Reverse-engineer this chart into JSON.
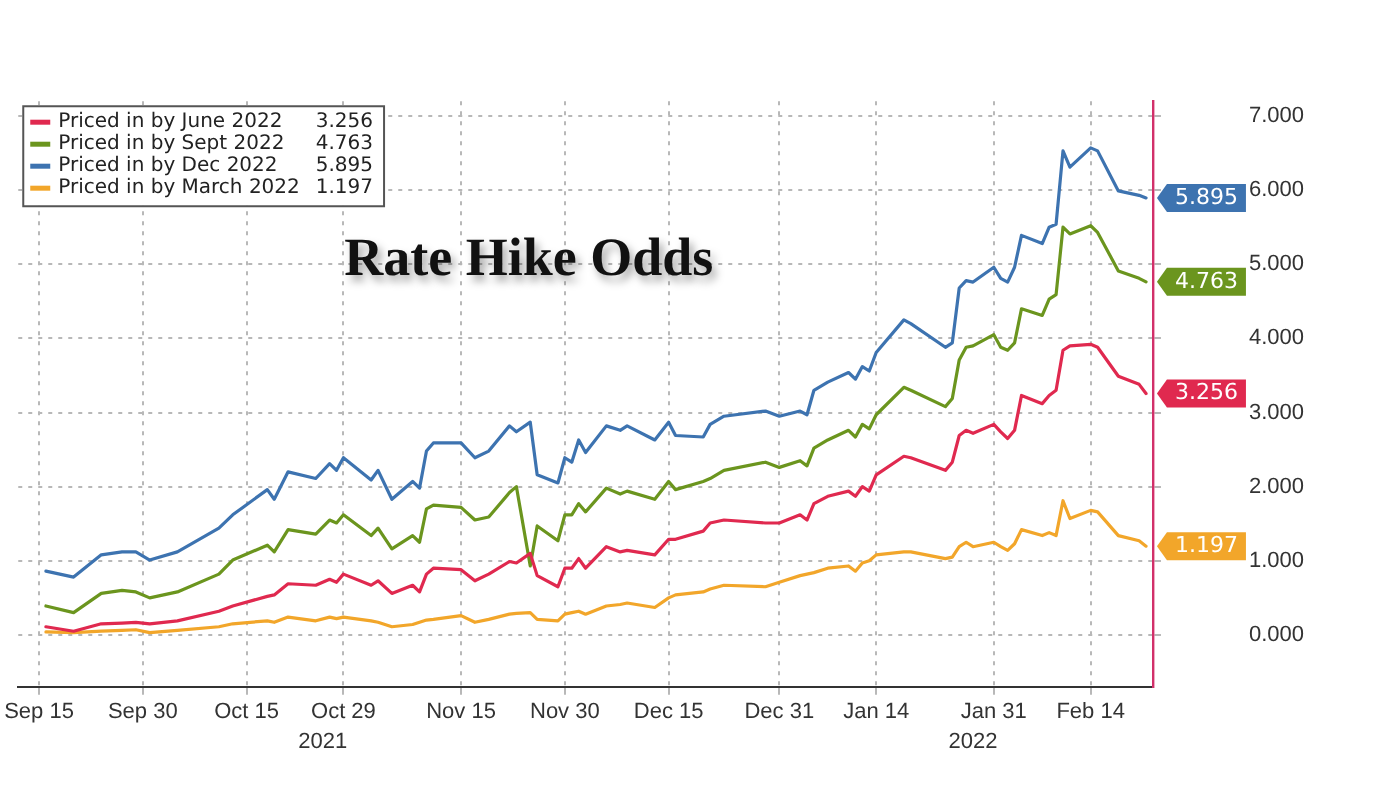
{
  "chart_data": {
    "type": "line",
    "title": "Rate Hike Odds",
    "x": [
      "2021-09-16",
      "2021-09-20",
      "2021-09-24",
      "2021-09-27",
      "2021-09-29",
      "2021-10-01",
      "2021-10-05",
      "2021-10-11",
      "2021-10-13",
      "2021-10-18",
      "2021-10-19",
      "2021-10-21",
      "2021-10-25",
      "2021-10-27",
      "2021-10-28",
      "2021-10-29",
      "2021-11-02",
      "2021-11-03",
      "2021-11-05",
      "2021-11-08",
      "2021-11-09",
      "2021-11-10",
      "2021-11-11",
      "2021-11-15",
      "2021-11-17",
      "2021-11-19",
      "2021-11-22",
      "2021-11-23",
      "2021-11-25",
      "2021-11-26",
      "2021-11-29",
      "2021-11-30",
      "2021-12-01",
      "2021-12-02",
      "2021-12-03",
      "2021-12-06",
      "2021-12-08",
      "2021-12-09",
      "2021-12-13",
      "2021-12-15",
      "2021-12-16",
      "2021-12-20",
      "2021-12-21",
      "2021-12-23",
      "2021-12-29",
      "2021-12-31",
      "2022-01-03",
      "2022-01-04",
      "2022-01-05",
      "2022-01-07",
      "2022-01-10",
      "2022-01-11",
      "2022-01-12",
      "2022-01-13",
      "2022-01-14",
      "2022-01-18",
      "2022-01-19",
      "2022-01-24",
      "2022-01-25",
      "2022-01-26",
      "2022-01-27",
      "2022-01-28",
      "2022-01-31",
      "2022-02-01",
      "2022-02-02",
      "2022-02-03",
      "2022-02-04",
      "2022-02-07",
      "2022-02-08",
      "2022-02-09",
      "2022-02-10",
      "2022-02-11",
      "2022-02-14",
      "2022-02-15",
      "2022-02-18",
      "2022-02-21",
      "2022-02-22"
    ],
    "series": [
      {
        "name": "Priced in by June 2022",
        "color": "#e0294f",
        "values": [
          0.11,
          0.05,
          0.15,
          0.16,
          0.17,
          0.15,
          0.19,
          0.32,
          0.39,
          0.52,
          0.54,
          0.69,
          0.67,
          0.75,
          0.71,
          0.82,
          0.67,
          0.73,
          0.56,
          0.67,
          0.58,
          0.82,
          0.9,
          0.88,
          0.73,
          0.82,
          0.99,
          0.97,
          1.1,
          0.8,
          0.65,
          0.9,
          0.9,
          1.03,
          0.9,
          1.19,
          1.12,
          1.14,
          1.08,
          1.29,
          1.29,
          1.4,
          1.51,
          1.55,
          1.51,
          1.51,
          1.62,
          1.55,
          1.77,
          1.87,
          1.94,
          1.87,
          2.0,
          1.94,
          2.16,
          2.41,
          2.39,
          2.22,
          2.33,
          2.69,
          2.76,
          2.72,
          2.84,
          2.74,
          2.65,
          2.76,
          3.23,
          3.12,
          3.23,
          3.3,
          3.84,
          3.9,
          3.92,
          3.88,
          3.49,
          3.38,
          3.256
        ],
        "value_labels": [
          null,
          null,
          null,
          null,
          null,
          null,
          null,
          null,
          null,
          null,
          null,
          null,
          null,
          null,
          null,
          null,
          null,
          null,
          null,
          null,
          null,
          null,
          null,
          null,
          null,
          null,
          null,
          null,
          null,
          null,
          null,
          null,
          null,
          null,
          null,
          null,
          null,
          null,
          null,
          null,
          null,
          null,
          null,
          null,
          null,
          null,
          null,
          null,
          null,
          null,
          null,
          null,
          null,
          null,
          null,
          null,
          null,
          null,
          null,
          null,
          null,
          null,
          null,
          null,
          null,
          null,
          null,
          null,
          null,
          null,
          null,
          null,
          null,
          null,
          null,
          null,
          "3.256"
        ]
      },
      {
        "name": "Priced in by Sept 2022",
        "color": "#6b951e",
        "values": [
          0.39,
          0.3,
          0.56,
          0.6,
          0.58,
          0.5,
          0.58,
          0.82,
          1.01,
          1.21,
          1.12,
          1.42,
          1.36,
          1.55,
          1.51,
          1.62,
          1.34,
          1.44,
          1.16,
          1.34,
          1.25,
          1.7,
          1.75,
          1.72,
          1.55,
          1.59,
          1.92,
          2.0,
          0.93,
          1.47,
          1.27,
          1.62,
          1.62,
          1.77,
          1.66,
          1.98,
          1.9,
          1.94,
          1.83,
          2.07,
          1.96,
          2.07,
          2.11,
          2.22,
          2.33,
          2.26,
          2.35,
          2.28,
          2.52,
          2.63,
          2.76,
          2.67,
          2.84,
          2.78,
          2.97,
          3.34,
          3.3,
          3.08,
          3.19,
          3.71,
          3.88,
          3.9,
          4.05,
          3.88,
          3.84,
          3.94,
          4.4,
          4.31,
          4.53,
          4.59,
          5.5,
          5.41,
          5.52,
          5.43,
          4.91,
          4.81,
          4.763
        ],
        "value_labels": [
          null,
          null,
          null,
          null,
          null,
          null,
          null,
          null,
          null,
          null,
          null,
          null,
          null,
          null,
          null,
          null,
          null,
          null,
          null,
          null,
          null,
          null,
          null,
          null,
          null,
          null,
          null,
          null,
          null,
          null,
          null,
          null,
          null,
          null,
          null,
          null,
          null,
          null,
          null,
          null,
          null,
          null,
          null,
          null,
          null,
          null,
          null,
          null,
          null,
          null,
          null,
          null,
          null,
          null,
          null,
          null,
          null,
          null,
          null,
          null,
          null,
          null,
          null,
          null,
          null,
          null,
          null,
          null,
          null,
          null,
          null,
          null,
          null,
          null,
          null,
          null,
          "4.763"
        ]
      },
      {
        "name": "Priced in by Dec 2022",
        "color": "#3d73b0",
        "values": [
          0.86,
          0.78,
          1.08,
          1.12,
          1.12,
          1.01,
          1.12,
          1.44,
          1.62,
          1.96,
          1.83,
          2.2,
          2.11,
          2.31,
          2.22,
          2.39,
          2.09,
          2.22,
          1.83,
          2.07,
          1.98,
          2.48,
          2.59,
          2.59,
          2.39,
          2.48,
          2.82,
          2.74,
          2.87,
          2.16,
          2.05,
          2.39,
          2.33,
          2.63,
          2.46,
          2.82,
          2.76,
          2.82,
          2.63,
          2.87,
          2.69,
          2.67,
          2.84,
          2.95,
          3.02,
          2.95,
          3.02,
          2.97,
          3.3,
          3.41,
          3.54,
          3.45,
          3.62,
          3.56,
          3.81,
          4.25,
          4.2,
          3.88,
          3.94,
          4.68,
          4.78,
          4.76,
          4.96,
          4.81,
          4.76,
          4.96,
          5.39,
          5.28,
          5.5,
          5.54,
          6.53,
          6.31,
          6.57,
          6.53,
          5.99,
          5.93,
          5.895
        ],
        "value_labels": [
          null,
          null,
          null,
          null,
          null,
          null,
          null,
          null,
          null,
          null,
          null,
          null,
          null,
          null,
          null,
          null,
          null,
          null,
          null,
          null,
          null,
          null,
          null,
          null,
          null,
          null,
          null,
          null,
          null,
          null,
          null,
          null,
          null,
          null,
          null,
          null,
          null,
          null,
          null,
          null,
          null,
          null,
          null,
          null,
          null,
          null,
          null,
          null,
          null,
          null,
          null,
          null,
          null,
          null,
          null,
          null,
          null,
          null,
          null,
          null,
          null,
          null,
          null,
          null,
          null,
          null,
          null,
          null,
          null,
          null,
          null,
          null,
          null,
          null,
          null,
          null,
          "5.895"
        ]
      },
      {
        "name": "Priced in by March 2022",
        "color": "#f2a62a",
        "values": [
          0.04,
          0.03,
          0.05,
          0.06,
          0.07,
          0.03,
          0.06,
          0.11,
          0.15,
          0.19,
          0.17,
          0.24,
          0.19,
          0.24,
          0.22,
          0.24,
          0.19,
          0.17,
          0.11,
          0.14,
          0.17,
          0.2,
          0.21,
          0.26,
          0.17,
          0.21,
          0.28,
          0.29,
          0.3,
          0.21,
          0.19,
          0.28,
          0.3,
          0.32,
          0.28,
          0.39,
          0.41,
          0.43,
          0.37,
          0.5,
          0.54,
          0.58,
          0.62,
          0.67,
          0.65,
          0.71,
          0.8,
          0.82,
          0.84,
          0.9,
          0.93,
          0.86,
          0.97,
          1.0,
          1.08,
          1.12,
          1.12,
          1.03,
          1.05,
          1.19,
          1.25,
          1.19,
          1.25,
          1.19,
          1.14,
          1.23,
          1.42,
          1.34,
          1.38,
          1.34,
          1.81,
          1.57,
          1.68,
          1.66,
          1.34,
          1.27,
          1.197
        ],
        "value_labels": [
          null,
          null,
          null,
          null,
          null,
          null,
          null,
          null,
          null,
          null,
          null,
          null,
          null,
          null,
          null,
          null,
          null,
          null,
          null,
          null,
          null,
          null,
          null,
          null,
          null,
          null,
          null,
          null,
          null,
          null,
          null,
          null,
          null,
          null,
          null,
          null,
          null,
          null,
          null,
          null,
          null,
          null,
          null,
          null,
          null,
          null,
          null,
          null,
          null,
          null,
          null,
          null,
          null,
          null,
          null,
          null,
          null,
          null,
          null,
          null,
          null,
          null,
          null,
          null,
          null,
          null,
          null,
          null,
          null,
          null,
          null,
          null,
          null,
          null,
          null,
          null,
          "1.197"
        ]
      }
    ],
    "xlim": [
      "2021-09-12",
      "2022-02-23"
    ],
    "xticks": [
      {
        "value": "2021-09-15",
        "label": "Sep 15"
      },
      {
        "value": "2021-09-30",
        "label": "Sep 30"
      },
      {
        "value": "2021-10-15",
        "label": "Oct 15"
      },
      {
        "value": "2021-10-29",
        "label": "Oct 29"
      },
      {
        "value": "2021-11-15",
        "label": "Nov 15"
      },
      {
        "value": "2021-11-30",
        "label": "Nov 30"
      },
      {
        "value": "2021-12-15",
        "label": "Dec 15"
      },
      {
        "value": "2021-12-31",
        "label": "Dec 31"
      },
      {
        "value": "2022-01-14",
        "label": "Jan 14"
      },
      {
        "value": "2022-01-31",
        "label": "Jan 31"
      },
      {
        "value": "2022-02-14",
        "label": "Feb 14"
      }
    ],
    "x2lim": [
      "2021-09-12",
      "2022-02-23"
    ],
    "x2ticks": [
      {
        "value": "2021-10-26",
        "label": "2021"
      },
      {
        "value": "2022-01-28",
        "label": "2022"
      }
    ],
    "ylim": [
      -0.7,
      7.2
    ],
    "yticks": [
      {
        "value": 0,
        "label": "0.000"
      },
      {
        "value": 1,
        "label": "1.000"
      },
      {
        "value": 2,
        "label": "2.000"
      },
      {
        "value": 3,
        "label": "3.000"
      },
      {
        "value": 4,
        "label": "4.000"
      },
      {
        "value": 5,
        "label": "5.000"
      },
      {
        "value": 6,
        "label": "6.000"
      },
      {
        "value": 7,
        "label": "7.000"
      }
    ],
    "grid": true,
    "legend": "top left"
  }
}
